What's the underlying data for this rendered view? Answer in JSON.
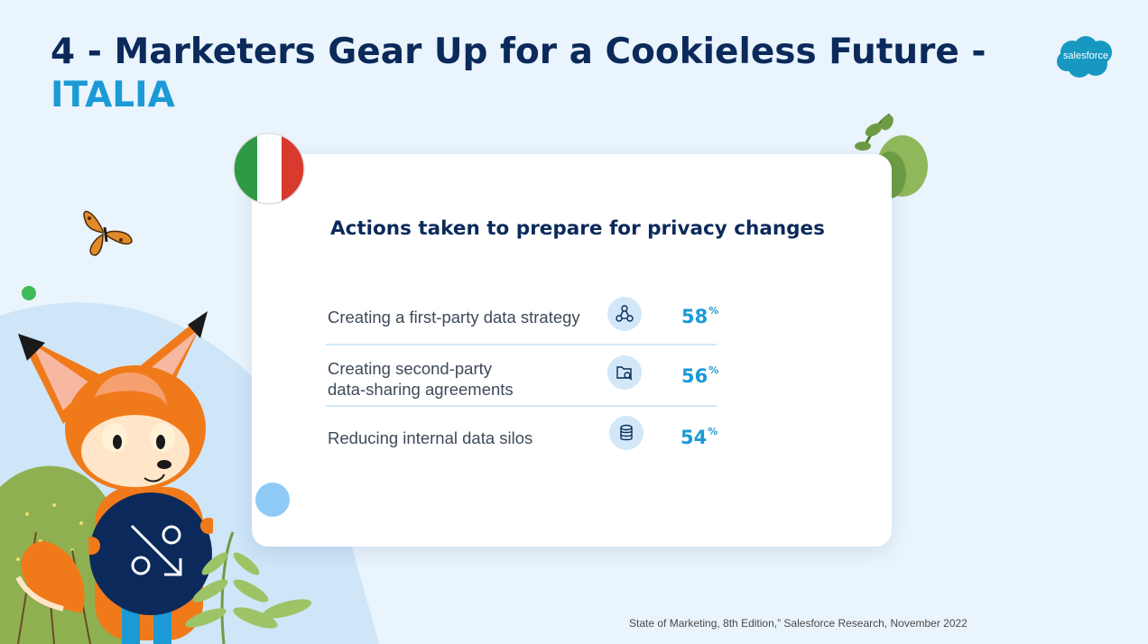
{
  "slide": {
    "title_line1": "4 - Marketers Gear Up for a Cookieless Future -",
    "title_line2": "ITALIA",
    "logo_text": "salesforce",
    "flag": "italy-flag-icon"
  },
  "card": {
    "title": "Actions taken to prepare for privacy changes",
    "rows": [
      {
        "label": "Creating a first-party data strategy",
        "icon": "network-nodes-icon",
        "value": "58",
        "unit": "%"
      },
      {
        "label_line1": "Creating second-party",
        "label_line2": "data-sharing agreements",
        "icon": "folder-search-icon",
        "value": "56",
        "unit": "%"
      },
      {
        "label": "Reducing internal data silos",
        "icon": "database-icon",
        "value": "54",
        "unit": "%"
      }
    ]
  },
  "footer": {
    "source": "State of Marketing, 8th Edition,” Salesforce Research, November 2022"
  },
  "colors": {
    "background": "#eaf4fc",
    "navy": "#0b2a5b",
    "accent": "#1b9ad6",
    "icon_bg": "#d2e8f8"
  }
}
